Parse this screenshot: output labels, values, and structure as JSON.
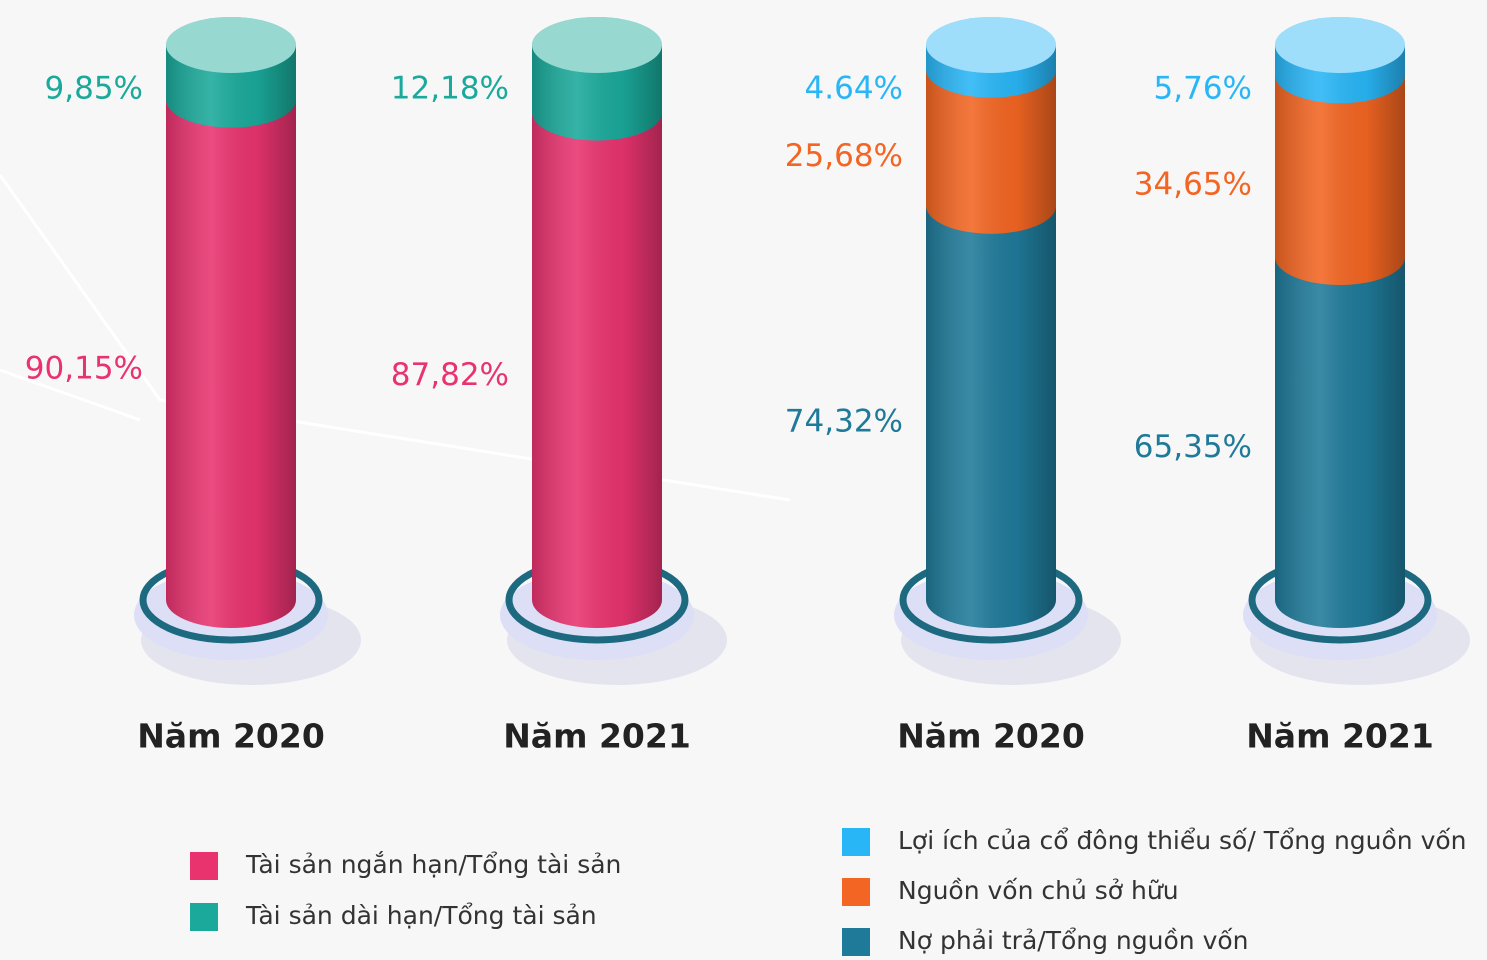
{
  "chart_data": [
    {
      "type": "stacked-cylinder",
      "categories": [
        "Năm 2020",
        "Năm 2021"
      ],
      "series": [
        {
          "name": "Tài sản ngắn hạn/Tổng tài sản",
          "color": "#e8336f",
          "values": [
            90.15,
            87.82
          ],
          "value_labels": [
            "90,15%",
            "87,82%"
          ]
        },
        {
          "name": "Tài sản dài hạn/Tổng tài sản",
          "color": "#1aa99a",
          "values": [
            9.85,
            12.18
          ],
          "value_labels": [
            "9,85%",
            "12,18%"
          ]
        }
      ]
    },
    {
      "type": "stacked-cylinder",
      "categories": [
        "Năm 2020",
        "Năm 2021"
      ],
      "legend_reverse": true,
      "series": [
        {
          "name": "Nợ phải trả/Tổng nguồn vốn",
          "color": "#1f7a99",
          "values": [
            74.32,
            65.35
          ],
          "value_labels": [
            "74,32%",
            "65,35%"
          ]
        },
        {
          "name": "Nguồn vốn chủ sở hữu",
          "color": "#f26522",
          "values": [
            25.68,
            34.65
          ],
          "value_labels": [
            "25,68%",
            "34,65%"
          ]
        },
        {
          "name": "Lợi ích của cổ đông thiểu số/ Tổng nguồn vốn",
          "color": "#29b6f6",
          "values": [
            4.64,
            5.76
          ],
          "value_labels": [
            "4.64%",
            "5,76%"
          ]
        }
      ]
    }
  ]
}
